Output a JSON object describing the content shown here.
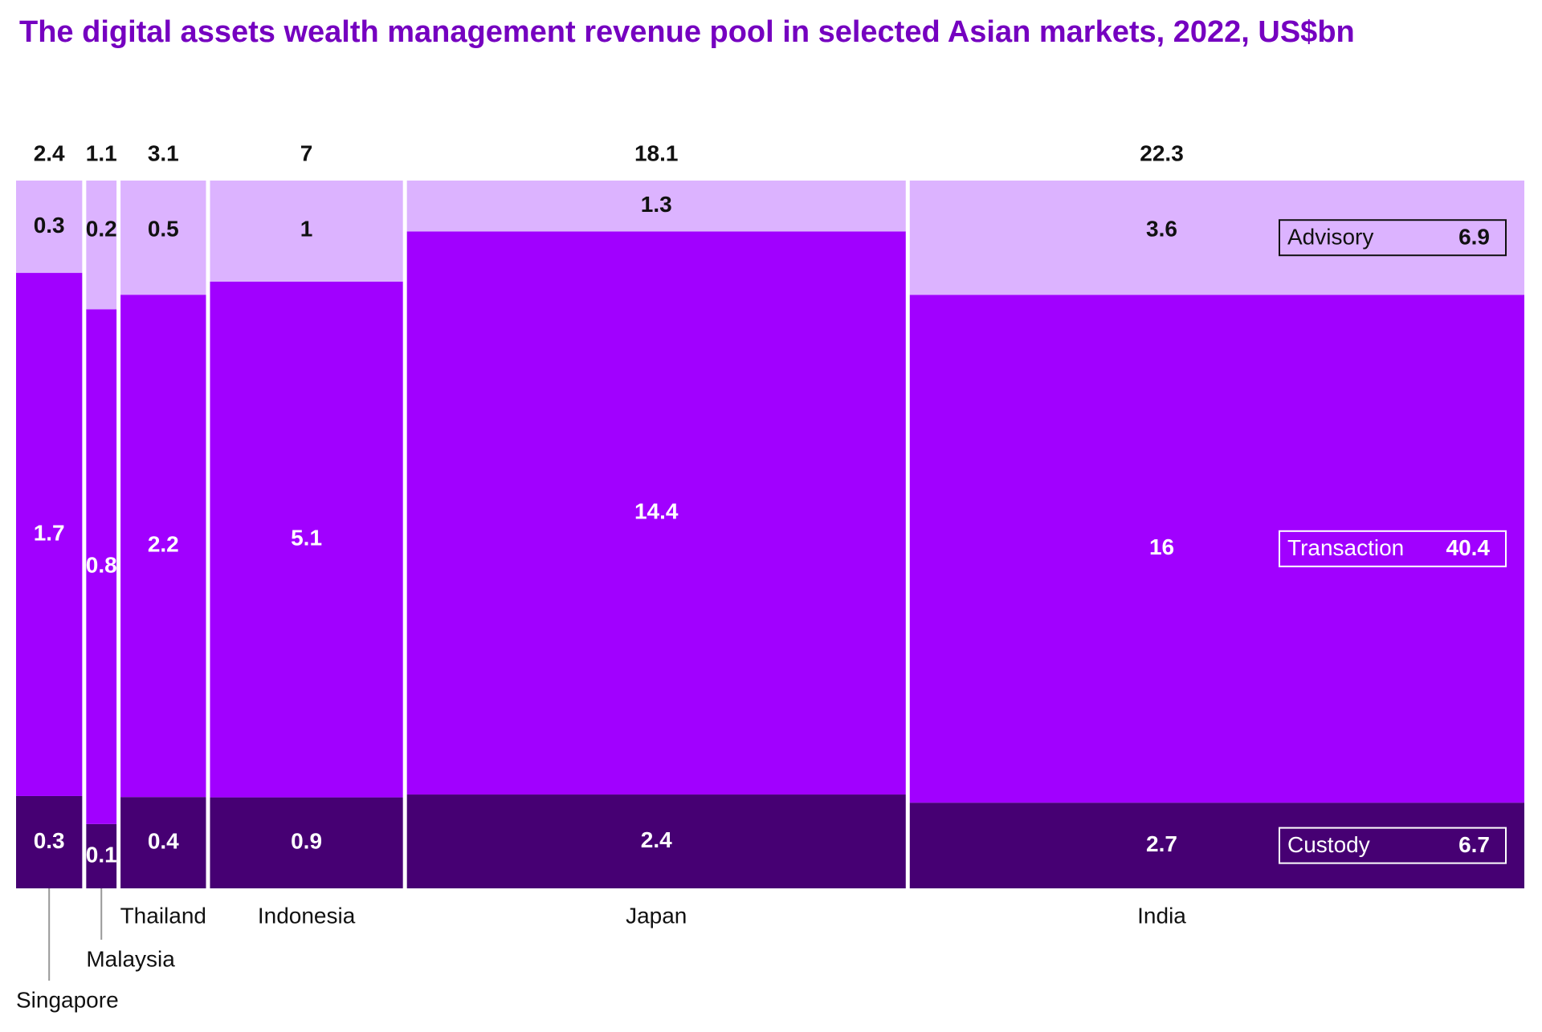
{
  "chart_data": {
    "type": "marimekko",
    "title": "The digital assets wealth management revenue pool in selected Asian markets, 2022, US$bn",
    "categories": [
      "Singapore",
      "Malaysia",
      "Thailand",
      "Indonesia",
      "Japan",
      "India"
    ],
    "totals": [
      2.4,
      1.1,
      3.1,
      7.0,
      18.1,
      22.3
    ],
    "series": [
      {
        "name": "Custody",
        "color": "#460073",
        "total": 6.7,
        "values": [
          0.3,
          0.1,
          0.4,
          0.9,
          2.4,
          2.7
        ]
      },
      {
        "name": "Transaction",
        "color": "#a100ff",
        "total": 40.4,
        "values": [
          1.7,
          0.8,
          2.2,
          5.1,
          14.4,
          16.0
        ]
      },
      {
        "name": "Advisory",
        "color": "#dcb3ff",
        "total": 6.9,
        "values": [
          0.3,
          0.2,
          0.5,
          1.0,
          1.3,
          3.6
        ]
      }
    ]
  }
}
